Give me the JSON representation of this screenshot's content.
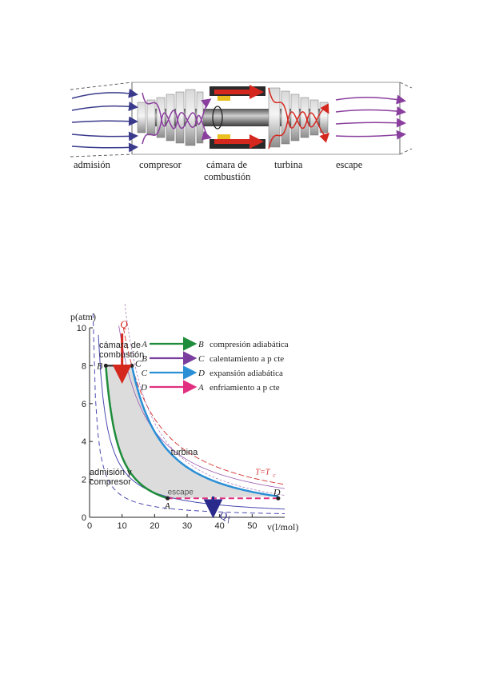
{
  "engine": {
    "labels": {
      "intake": "admisión",
      "compressor": "compresor",
      "chamber_1": "cámara de",
      "chamber_2": "combustión",
      "turbine": "turbina",
      "exhaust": "escape"
    },
    "colors": {
      "intake_flow": "#3a3a8c",
      "compressor_flow": "#8a3f9e",
      "combustion_flow": "#d4271e",
      "exhaust_flow": "#8a3f9e",
      "body": "#b0b0b0"
    }
  },
  "chart_data": {
    "type": "line",
    "ylabel": "p(atm)",
    "xlabel": "v(l/mol)",
    "xlim": [
      0,
      60
    ],
    "ylim": [
      0,
      10
    ],
    "xticks": [
      0,
      10,
      20,
      30,
      40,
      50
    ],
    "yticks": [
      0,
      2,
      4,
      6,
      8,
      10
    ],
    "points": {
      "A": [
        24,
        1
      ],
      "B": [
        5,
        8
      ],
      "C": [
        13,
        8
      ],
      "D": [
        58,
        1
      ]
    },
    "series": [
      {
        "name": "compresión adiabática",
        "from": "A",
        "to": "B",
        "color": "#1e8c3a"
      },
      {
        "name": "calentamiento a p cte",
        "from": "B",
        "to": "C",
        "color": "#7a3f9e"
      },
      {
        "name": "expansión adiabática",
        "from": "C",
        "to": "D",
        "color": "#2b8fd6"
      },
      {
        "name": "enfriamiento a p cte",
        "from": "D",
        "to": "A",
        "color": "#e0307f"
      }
    ],
    "legend": [
      {
        "from": "A",
        "to": "B",
        "text": "compresión adiabática",
        "color": "#1e8c3a"
      },
      {
        "from": "B",
        "to": "C",
        "text": "calentamiento a p cte",
        "color": "#7a3f9e"
      },
      {
        "from": "C",
        "to": "D",
        "text": "expansión adiabática",
        "color": "#2b8fd6"
      },
      {
        "from": "D",
        "to": "A",
        "text": "enfriamiento a p cte",
        "color": "#e0307f"
      }
    ],
    "legend_position": "top-center",
    "annotations": {
      "heat_in": "Q",
      "heat_out": "Q",
      "heat_out_sub": "f",
      "chamber_1": "cámara de",
      "chamber_2": "combustión",
      "turbine": "turbina",
      "intake_1": "admisión y",
      "intake_2": "compresor",
      "exhaust": "escape",
      "isotherm": "T=T",
      "isotherm_sub": "c"
    },
    "grid": false
  }
}
